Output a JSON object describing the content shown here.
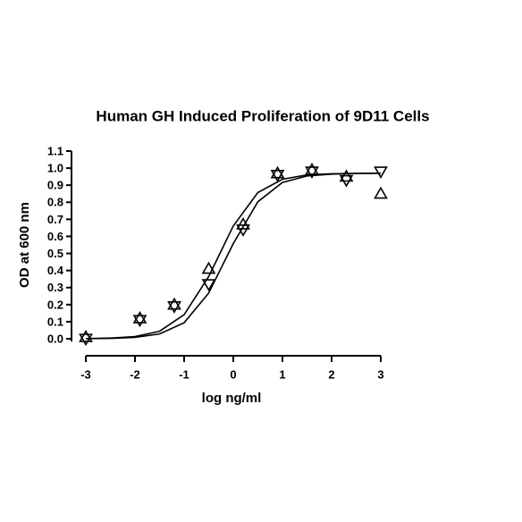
{
  "chart_data": {
    "type": "scatter",
    "title": "Human GH Induced Proliferation of 9D11 Cells",
    "x_label": "log ng/ml",
    "y_label": "OD at 600 nm",
    "xlim": [
      -3,
      3
    ],
    "xticks": [
      -3,
      -2,
      -1,
      0,
      1,
      2,
      3
    ],
    "ylim": [
      0,
      1.1
    ],
    "yticks": [
      {
        "value": 0,
        "label": "0.0"
      },
      0.1,
      0.2,
      0.3,
      0.4,
      0.5,
      0.6,
      0.7,
      0.8,
      0.9,
      {
        "value": 1,
        "label": "1.0"
      },
      1.1
    ],
    "series": [
      {
        "marker": "triangle-up",
        "color": "#000000",
        "x": [
          -3,
          -1.9,
          -1.2,
          -0.5,
          0.2,
          0.9,
          1.6,
          2.3,
          3
        ],
        "values": [
          0.01,
          0.12,
          0.2,
          0.41,
          0.67,
          0.97,
          0.99,
          0.95,
          0.85
        ]
      },
      {
        "marker": "triangle-down",
        "color": "#000000",
        "x": [
          -3,
          -1.9,
          -1.2,
          -0.5,
          0.2,
          0.9,
          1.6,
          2.3,
          3
        ],
        "values": [
          0.0,
          0.11,
          0.19,
          0.32,
          0.64,
          0.96,
          0.98,
          0.93,
          0.98
        ]
      }
    ],
    "fits": [
      {
        "color": "#000000",
        "x": [
          -3,
          -2.5,
          -2,
          -1.5,
          -1,
          -0.5,
          0,
          0.5,
          1,
          1.5,
          2,
          2.5,
          3
        ],
        "values": [
          0.001,
          0.004,
          0.013,
          0.044,
          0.141,
          0.365,
          0.661,
          0.857,
          0.935,
          0.96,
          0.967,
          0.969,
          0.97
        ]
      },
      {
        "color": "#000000",
        "x": [
          -3,
          -2.5,
          -2,
          -1.5,
          -1,
          -0.5,
          0,
          0.5,
          1,
          1.5,
          2,
          2.5,
          3
        ],
        "values": [
          0.001,
          0.002,
          0.008,
          0.028,
          0.094,
          0.268,
          0.558,
          0.803,
          0.916,
          0.954,
          0.965,
          0.969,
          0.97
        ]
      }
    ]
  }
}
